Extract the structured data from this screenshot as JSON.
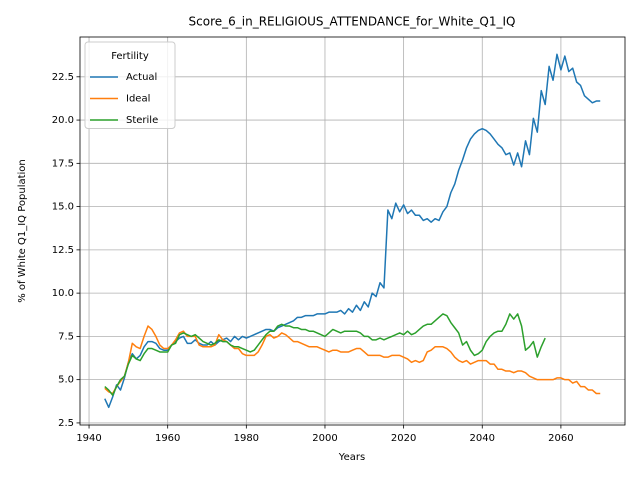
{
  "chart_data": {
    "type": "line",
    "title": "Score_6_in_RELIGIOUS_ATTENDANCE_for_White_Q1_IQ",
    "xlabel": "Years",
    "ylabel": "% of White Q1_IQ Population",
    "legend_title": "Fertility",
    "legend": "upper left",
    "grid": true,
    "xlim": [
      1937.7,
      2076.3
    ],
    "ylim": [
      2.38,
      24.8
    ],
    "xticks": [
      1940,
      1960,
      1980,
      2000,
      2020,
      2040,
      2060
    ],
    "yticks": [
      2.5,
      {
        "value": 5,
        "label": "5.0"
      },
      7.5,
      {
        "value": 10,
        "label": "10.0"
      },
      12.5,
      {
        "value": 15,
        "label": "15.0"
      },
      17.5,
      {
        "value": 20,
        "label": "20.0"
      },
      22.5
    ],
    "x": [
      1944,
      1945,
      1946,
      1947,
      1948,
      1949,
      1950,
      1951,
      1952,
      1953,
      1954,
      1955,
      1956,
      1957,
      1958,
      1959,
      1960,
      1961,
      1962,
      1963,
      1964,
      1965,
      1966,
      1967,
      1968,
      1969,
      1970,
      1971,
      1972,
      1973,
      1974,
      1975,
      1976,
      1977,
      1978,
      1979,
      1980,
      1981,
      1982,
      1983,
      1984,
      1985,
      1986,
      1987,
      1988,
      1989,
      1990,
      1991,
      1992,
      1993,
      1994,
      1995,
      1996,
      1997,
      1998,
      1999,
      2000,
      2001,
      2002,
      2003,
      2004,
      2005,
      2006,
      2007,
      2008,
      2009,
      2010,
      2011,
      2012,
      2013,
      2014,
      2015,
      2016,
      2017,
      2018,
      2019,
      2020,
      2021,
      2022,
      2023,
      2024,
      2025,
      2026,
      2027,
      2028,
      2029,
      2030,
      2031,
      2032,
      2033,
      2034,
      2035,
      2036,
      2037,
      2038,
      2039,
      2040,
      2041,
      2042,
      2043,
      2044,
      2045,
      2046,
      2047,
      2048,
      2049,
      2050,
      2051,
      2052,
      2053,
      2054,
      2055,
      2056,
      2057,
      2058,
      2059,
      2060,
      2061,
      2062,
      2063,
      2064,
      2065,
      2066,
      2067,
      2068,
      2069,
      2070
    ],
    "series": [
      {
        "name": "Actual",
        "color": "#1f77b4",
        "values": [
          3.9,
          3.4,
          4.0,
          4.7,
          4.4,
          5.1,
          6.0,
          6.5,
          6.2,
          6.4,
          6.9,
          7.2,
          7.2,
          7.1,
          6.8,
          6.7,
          6.7,
          7.0,
          7.2,
          7.4,
          7.5,
          7.1,
          7.1,
          7.3,
          7.1,
          7.0,
          7.0,
          7.2,
          7.0,
          7.2,
          7.3,
          7.4,
          7.2,
          7.5,
          7.3,
          7.5,
          7.4,
          7.5,
          7.6,
          7.7,
          7.8,
          7.9,
          7.9,
          7.8,
          8.0,
          8.1,
          8.2,
          8.3,
          8.4,
          8.6,
          8.6,
          8.7,
          8.7,
          8.7,
          8.8,
          8.8,
          8.8,
          8.9,
          8.9,
          8.9,
          9.0,
          8.8,
          9.1,
          8.9,
          9.3,
          9.0,
          9.5,
          9.2,
          10.0,
          9.8,
          10.6,
          10.3,
          14.8,
          14.3,
          15.2,
          14.7,
          15.1,
          14.6,
          14.8,
          14.5,
          14.5,
          14.2,
          14.3,
          14.1,
          14.3,
          14.2,
          14.7,
          15.0,
          15.8,
          16.3,
          17.1,
          17.7,
          18.4,
          18.9,
          19.2,
          19.4,
          19.5,
          19.4,
          19.2,
          18.9,
          18.6,
          18.4,
          18.0,
          18.1,
          17.4,
          18.1,
          17.3,
          18.8,
          18.0,
          20.1,
          19.3,
          21.7,
          20.9,
          23.1,
          22.3,
          23.8,
          22.9,
          23.7,
          22.8,
          23.0,
          22.2,
          22.0,
          21.4,
          21.2,
          21.0,
          21.1,
          21.1
        ]
      },
      {
        "name": "Ideal",
        "color": "#ff7f0e",
        "values": [
          4.5,
          4.3,
          4.2,
          4.6,
          4.9,
          5.2,
          6.0,
          7.1,
          6.9,
          6.8,
          7.5,
          8.1,
          7.9,
          7.5,
          7.0,
          6.8,
          6.8,
          7.0,
          7.3,
          7.7,
          7.8,
          7.5,
          7.5,
          7.5,
          7.0,
          6.9,
          6.9,
          6.9,
          7.0,
          7.6,
          7.3,
          7.2,
          7.0,
          6.8,
          6.8,
          6.5,
          6.4,
          6.4,
          6.4,
          6.6,
          7.0,
          7.5,
          7.6,
          7.4,
          7.5,
          7.7,
          7.6,
          7.4,
          7.2,
          7.2,
          7.1,
          7.0,
          6.9,
          6.9,
          6.9,
          6.8,
          6.7,
          6.6,
          6.7,
          6.7,
          6.6,
          6.6,
          6.6,
          6.7,
          6.8,
          6.8,
          6.6,
          6.4,
          6.4,
          6.4,
          6.4,
          6.3,
          6.3,
          6.4,
          6.4,
          6.4,
          6.3,
          6.2,
          6.0,
          6.1,
          6.0,
          6.1,
          6.6,
          6.7,
          6.9,
          6.9,
          6.9,
          6.8,
          6.6,
          6.3,
          6.1,
          6.0,
          6.1,
          5.9,
          6.0,
          6.1,
          6.1,
          6.1,
          5.9,
          5.9,
          5.6,
          5.6,
          5.5,
          5.5,
          5.4,
          5.5,
          5.5,
          5.4,
          5.2,
          5.1,
          5.0,
          5.0,
          5.0,
          5.0,
          5.0,
          5.1,
          5.1,
          5.0,
          5.0,
          4.8,
          4.9,
          4.6,
          4.6,
          4.4,
          4.4,
          4.2,
          4.2
        ]
      },
      {
        "name": "Sterile",
        "color": "#2ca02c",
        "values": [
          4.6,
          4.4,
          4.1,
          4.6,
          5.0,
          5.2,
          5.9,
          6.4,
          6.2,
          6.1,
          6.5,
          6.8,
          6.8,
          6.7,
          6.6,
          6.6,
          6.6,
          7.0,
          7.1,
          7.6,
          7.7,
          7.6,
          7.5,
          7.6,
          7.4,
          7.2,
          7.1,
          7.0,
          7.1,
          7.3,
          7.2,
          7.2,
          7.0,
          6.9,
          6.9,
          6.8,
          6.7,
          6.6,
          6.7,
          7.0,
          7.3,
          7.6,
          7.8,
          7.8,
          8.1,
          8.2,
          8.1,
          8.1,
          8.0,
          8.0,
          7.9,
          7.9,
          7.8,
          7.8,
          7.7,
          7.6,
          7.5,
          7.7,
          7.9,
          7.8,
          7.7,
          7.8,
          7.8,
          7.8,
          7.8,
          7.7,
          7.5,
          7.5,
          7.3,
          7.3,
          7.4,
          7.3,
          7.4,
          7.5,
          7.6,
          7.7,
          7.6,
          7.8,
          7.6,
          7.7,
          7.9,
          8.1,
          8.2,
          8.2,
          8.4,
          8.6,
          8.8,
          8.7,
          8.3,
          8.0,
          7.7,
          7.0,
          7.2,
          6.7,
          6.4,
          6.5,
          6.7,
          7.2,
          7.5,
          7.7,
          7.8,
          7.8,
          8.2,
          8.8,
          8.5,
          8.8,
          8.1,
          6.7,
          6.9,
          7.2,
          6.3,
          6.9,
          7.4,
          null,
          null,
          null,
          null,
          null,
          null,
          null,
          null,
          null,
          null,
          null,
          null,
          null,
          null
        ]
      }
    ]
  }
}
